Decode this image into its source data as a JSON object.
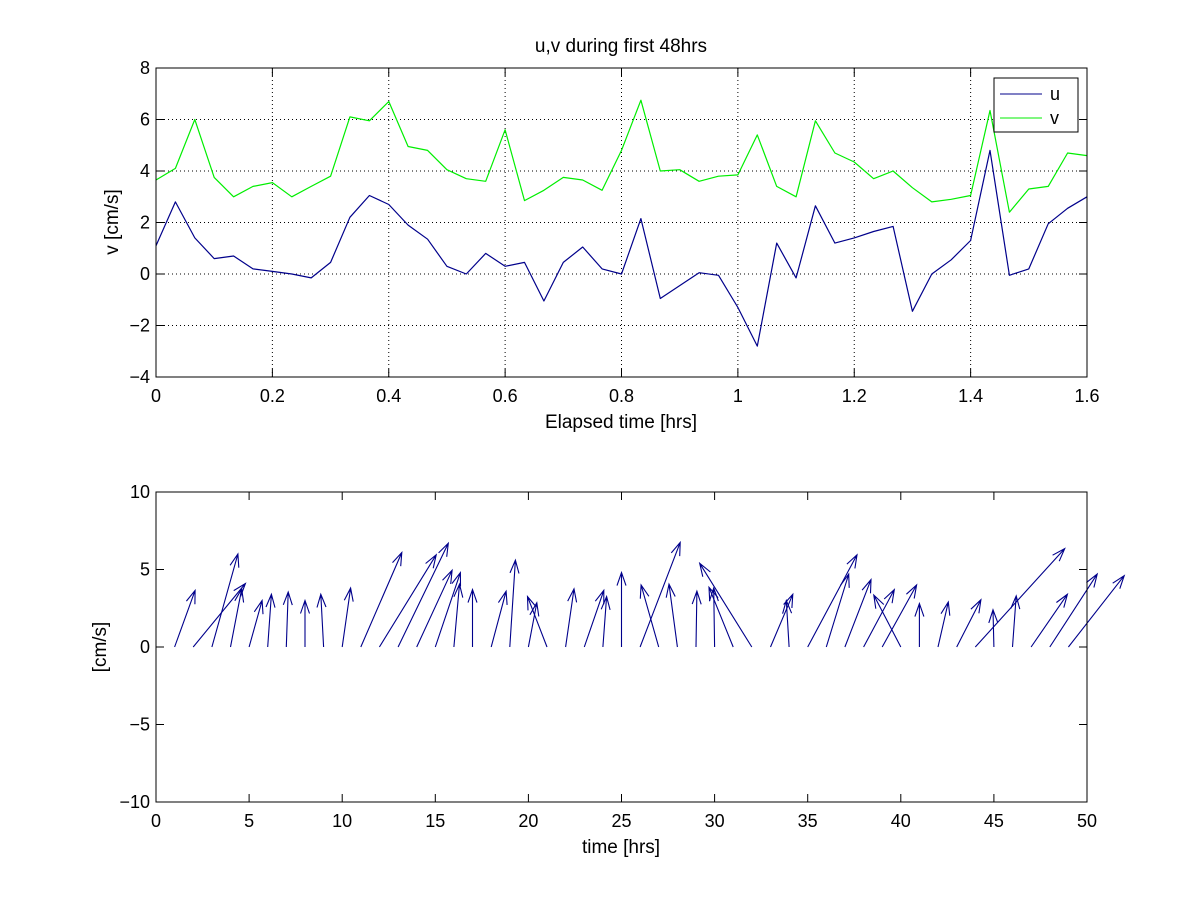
{
  "chart_data": [
    {
      "type": "line",
      "title": "u,v during first 48hrs",
      "xlabel": "Elapsed time [hrs]",
      "ylabel": "v [cm/s]",
      "xlim": [
        0,
        1.6
      ],
      "ylim": [
        -4,
        8
      ],
      "xticks": [
        0,
        0.2,
        0.4,
        0.6,
        0.8,
        1,
        1.2,
        1.4,
        1.6
      ],
      "xtick_labels": [
        "0",
        "0.2",
        "0.4",
        "0.6",
        "0.8",
        "1",
        "1.2",
        "1.4",
        "1.6"
      ],
      "yticks": [
        -4,
        -2,
        0,
        2,
        4,
        6,
        8
      ],
      "ytick_labels": [
        "−4",
        "−2",
        "0",
        "2",
        "4",
        "6",
        "8"
      ],
      "grid": true,
      "legend_position": "top-right",
      "x": [
        0,
        0.0333,
        0.0667,
        0.1,
        0.1333,
        0.1667,
        0.2,
        0.2333,
        0.2667,
        0.3,
        0.3333,
        0.3667,
        0.4,
        0.4333,
        0.4667,
        0.5,
        0.5333,
        0.5667,
        0.6,
        0.6333,
        0.6667,
        0.7,
        0.7333,
        0.7667,
        0.8,
        0.8333,
        0.8667,
        0.9,
        0.9333,
        0.9667,
        1.0,
        1.0333,
        1.0667,
        1.1,
        1.1333,
        1.1667,
        1.2,
        1.2333,
        1.2667,
        1.3,
        1.3333,
        1.3667,
        1.4,
        1.4333,
        1.4667,
        1.5,
        1.5333,
        1.5667,
        1.6
      ],
      "series": [
        {
          "name": "u",
          "color": "#00008b",
          "values": [
            1.1,
            2.8,
            1.4,
            0.6,
            0.7,
            0.2,
            0.1,
            0.0,
            -0.15,
            0.45,
            2.2,
            3.05,
            2.7,
            1.9,
            1.35,
            0.3,
            0.0,
            0.8,
            0.3,
            0.45,
            -1.05,
            0.45,
            1.05,
            0.2,
            0.0,
            2.15,
            -0.95,
            -0.45,
            0.05,
            -0.05,
            -1.3,
            -2.8,
            1.2,
            -0.15,
            2.65,
            1.2,
            1.4,
            1.65,
            1.85,
            -1.45,
            0.0,
            0.55,
            1.3,
            4.8,
            -0.05,
            0.2,
            1.95,
            2.55,
            3.0
          ]
        },
        {
          "name": "v",
          "color": "#00ee00",
          "values": [
            3.65,
            4.1,
            6.0,
            3.75,
            3.0,
            3.4,
            3.55,
            3.0,
            3.4,
            3.8,
            6.1,
            5.95,
            6.7,
            4.95,
            4.8,
            4.05,
            3.7,
            3.6,
            5.6,
            2.85,
            3.25,
            3.75,
            3.65,
            3.25,
            4.8,
            6.75,
            4.0,
            4.05,
            3.6,
            3.8,
            3.85,
            5.4,
            3.4,
            3.0,
            5.95,
            4.7,
            4.35,
            3.7,
            4.0,
            3.35,
            2.8,
            2.9,
            3.05,
            6.35,
            2.4,
            3.3,
            3.4,
            4.7,
            4.6
          ]
        }
      ]
    },
    {
      "type": "quiver",
      "title": "",
      "xlabel": "time [hrs]",
      "ylabel": "[cm/s]",
      "xlim": [
        0,
        50
      ],
      "ylim": [
        -10,
        10
      ],
      "xticks": [
        0,
        5,
        10,
        15,
        20,
        25,
        30,
        35,
        40,
        45,
        50
      ],
      "xtick_labels": [
        "0",
        "5",
        "10",
        "15",
        "20",
        "25",
        "30",
        "35",
        "40",
        "45",
        "50"
      ],
      "yticks": [
        -10,
        -5,
        0,
        5,
        10
      ],
      "ytick_labels": [
        "−10",
        "−5",
        "0",
        "5",
        "10"
      ],
      "grid": false,
      "color": "#00008b",
      "base_y": 0,
      "origins": [
        1,
        2,
        3,
        4,
        5,
        6,
        7,
        8,
        9,
        10,
        11,
        12,
        13,
        14,
        15,
        16,
        17,
        18,
        19,
        20,
        21,
        22,
        23,
        24,
        25,
        26,
        27,
        28,
        29,
        30,
        31,
        32,
        33,
        34,
        35,
        36,
        37,
        38,
        39,
        40,
        41,
        42,
        43,
        44,
        45,
        46,
        47,
        48,
        49
      ],
      "u": [
        1.1,
        2.8,
        1.4,
        0.6,
        0.7,
        0.2,
        0.1,
        0.0,
        -0.15,
        0.45,
        2.2,
        3.05,
        2.7,
        1.9,
        1.35,
        0.3,
        0.0,
        0.8,
        0.3,
        0.45,
        -1.05,
        0.45,
        1.05,
        0.2,
        0.0,
        2.15,
        -0.95,
        -0.45,
        0.05,
        -0.05,
        -1.3,
        -2.8,
        1.2,
        -0.15,
        2.65,
        1.2,
        1.4,
        1.65,
        1.85,
        -1.45,
        0.0,
        0.55,
        1.3,
        4.8,
        -0.05,
        0.2,
        1.95,
        2.55,
        3.0
      ],
      "v": [
        3.65,
        4.1,
        6.0,
        3.75,
        3.0,
        3.4,
        3.55,
        3.0,
        3.4,
        3.8,
        6.1,
        5.95,
        6.7,
        4.95,
        4.8,
        4.05,
        3.7,
        3.6,
        5.6,
        2.85,
        3.25,
        3.75,
        3.65,
        3.25,
        4.8,
        6.75,
        4.0,
        4.05,
        3.6,
        3.8,
        3.85,
        5.4,
        3.4,
        3.0,
        5.95,
        4.7,
        4.35,
        3.7,
        4.0,
        3.35,
        2.8,
        2.9,
        3.05,
        6.35,
        2.4,
        3.3,
        3.4,
        4.7,
        4.6
      ]
    }
  ]
}
